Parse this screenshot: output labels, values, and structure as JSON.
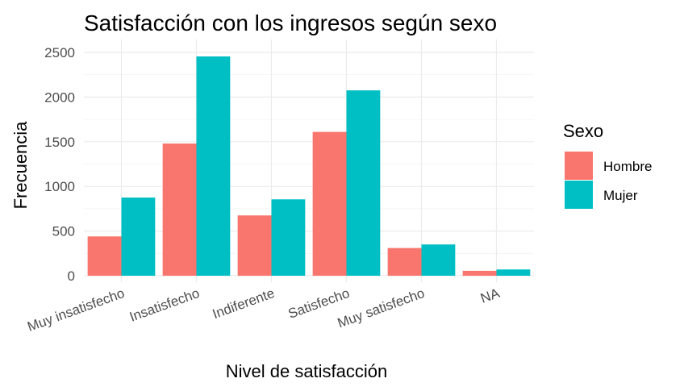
{
  "chart_data": {
    "type": "bar",
    "title": "Satisfacción con los ingresos según sexo",
    "xlabel": "Nivel de satisfacción",
    "ylabel": "Frecuencia",
    "categories": [
      "Muy insatisfecho",
      "Insatisfecho",
      "Indiferente",
      "Satisfecho",
      "Muy satisfecho",
      "NA"
    ],
    "series": [
      {
        "name": "Hombre",
        "color": "#F8766D",
        "values": [
          440,
          1480,
          675,
          1610,
          310,
          55
        ]
      },
      {
        "name": "Mujer",
        "color": "#00BFC4",
        "values": [
          875,
          2455,
          855,
          2075,
          350,
          70
        ]
      }
    ],
    "ylim": [
      0,
      2600
    ],
    "yticks": [
      "0",
      "500",
      "1000",
      "1500",
      "2000",
      "2500"
    ],
    "grid": true,
    "legend": {
      "title": "Sexo",
      "placement": "right"
    }
  }
}
